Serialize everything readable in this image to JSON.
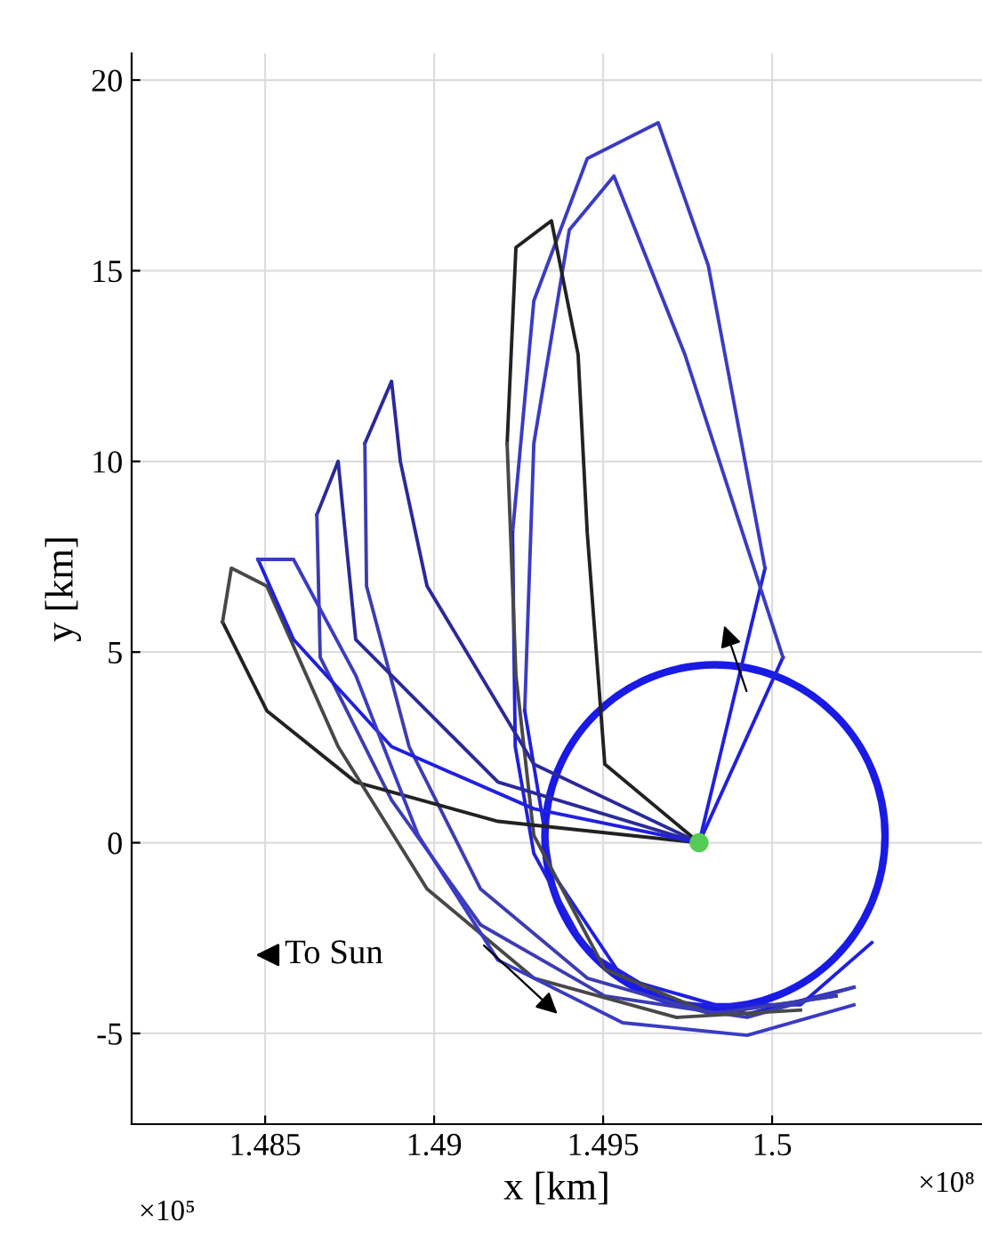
{
  "chart_data": {
    "type": "line",
    "xlabel": "x [km]",
    "ylabel": "y [km]",
    "xlim": [
      1.48105,
      1.50621
    ],
    "ylim": [
      -7.38,
      20.7
    ],
    "xticks": [
      1.485,
      1.49,
      1.495,
      1.5
    ],
    "yticks": [
      -5,
      0,
      5,
      10,
      15,
      20
    ],
    "grid": true,
    "line_style": "solid",
    "annotations": [
      "To Sun",
      "×10⁸",
      "×10⁵"
    ],
    "series": [
      {
        "color": "#2020e0",
        "x": [
          1.49784,
          1.49979
        ],
        "values": [
          0,
          7.2
        ]
      },
      {
        "color": "#3b3bc4",
        "x": [
          1.49979,
          1.49811,
          1.49663,
          1.49453,
          1.49295,
          1.49232
        ],
        "values": [
          7.2,
          15.14,
          18.88,
          17.94,
          14.21,
          8.13
        ]
      },
      {
        "color": "#2020e0",
        "x": [
          1.49232,
          1.4924,
          1.49295,
          1.49453,
          1.49716,
          1.50084,
          1.50295
        ],
        "values": [
          8.13,
          2.52,
          -0.28,
          -2.85,
          -4.25,
          -4.25,
          -2.62
        ]
      },
      {
        "color": "#2020e0",
        "x": [
          1.49784,
          1.50032
        ],
        "values": [
          0,
          4.86
        ]
      },
      {
        "color": "#3b3bc4",
        "x": [
          1.50032,
          1.49742,
          1.49532,
          1.494,
          1.49295,
          1.49268
        ],
        "values": [
          4.86,
          12.8,
          17.48,
          16.07,
          10.47,
          3.46
        ]
      },
      {
        "color": "#2020e0",
        "x": [
          1.49268,
          1.49347,
          1.49558,
          1.49926,
          1.50242
        ],
        "values": [
          3.46,
          -0.75,
          -3.55,
          -4.49,
          -3.79
        ]
      },
      {
        "color": "#222222",
        "x": [
          1.49784,
          1.49505,
          1.49453,
          1.49426,
          1.49347,
          1.49242,
          1.49216
        ],
        "values": [
          0,
          2.06,
          8.13,
          12.8,
          16.31,
          15.61,
          10.47
        ]
      },
      {
        "color": "#484848",
        "x": [
          1.49216,
          1.49242,
          1.49295,
          1.49505,
          1.49821,
          1.50189
        ],
        "values": [
          10.47,
          4.39,
          0.19,
          -3.32,
          -4.49,
          -4.02
        ]
      },
      {
        "color": "#2a2a9a",
        "x": [
          1.49784,
          1.49295,
          1.48979,
          1.489,
          1.48874,
          1.48795
        ],
        "values": [
          0,
          2.06,
          6.73,
          10.0,
          12.1,
          10.47
        ]
      },
      {
        "color": "#3c3cb4",
        "x": [
          1.48795,
          1.488,
          1.48926,
          1.49137,
          1.49453,
          1.49821,
          1.50189
        ],
        "values": [
          10.47,
          6.73,
          2.52,
          -1.21,
          -3.55,
          -4.49,
          -4.02
        ]
      },
      {
        "color": "#2a2a9a",
        "x": [
          1.49784,
          1.49189,
          1.48768,
          1.48716,
          1.48653
        ],
        "values": [
          0,
          1.59,
          5.33,
          10.0,
          8.6
        ]
      },
      {
        "color": "#3c3cb4",
        "x": [
          1.48653,
          1.48663,
          1.48874,
          1.49137,
          1.49505,
          1.49926,
          1.50242
        ],
        "values": [
          8.6,
          4.86,
          1.12,
          -2.15,
          -4.02,
          -4.58,
          -3.79
        ]
      },
      {
        "color": "#222222",
        "x": [
          1.49784,
          1.49189,
          1.48768,
          1.48505,
          1.48374
        ],
        "values": [
          0,
          0.56,
          1.59,
          3.46,
          5.79
        ]
      },
      {
        "color": "#484848",
        "x": [
          1.48374,
          1.484,
          1.48505,
          1.48716,
          1.48979,
          1.49295,
          1.49716,
          1.50084
        ],
        "values": [
          5.79,
          7.2,
          6.73,
          2.52,
          -1.21,
          -3.55,
          -4.58,
          -4.39
        ]
      },
      {
        "color": "#2020e0",
        "x": [
          1.49784,
          1.49295,
          1.48874,
          1.48584,
          1.48479
        ],
        "values": [
          0,
          0.89,
          2.52,
          5.33,
          7.43
        ]
      },
      {
        "color": "#3b3bc4",
        "x": [
          1.48479,
          1.48584,
          1.48768,
          1.48953,
          1.49189,
          1.49558,
          1.49926,
          1.50242
        ],
        "values": [
          7.43,
          7.43,
          4.39,
          0.19,
          -3.08,
          -4.72,
          -5.05,
          -4.25
        ]
      },
      {
        "type": "scatter",
        "color": "#55cc55",
        "marker": "circle",
        "x": [
          1.49784
        ],
        "values": [
          0
        ]
      }
    ]
  }
}
